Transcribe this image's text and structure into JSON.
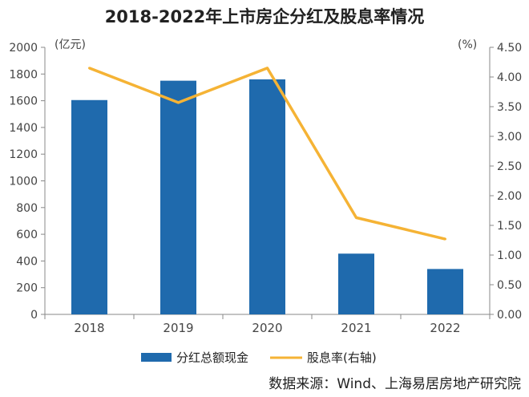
{
  "chart_data": {
    "type": "bar+line",
    "title": "2018-2022年上市房企分红及股息率情况",
    "categories": [
      "2018",
      "2019",
      "2020",
      "2021",
      "2022"
    ],
    "series": [
      {
        "name": "分红总额现金",
        "type": "bar",
        "axis": "left",
        "color": "#1f6aad",
        "values": [
          1605,
          1750,
          1760,
          455,
          340
        ]
      },
      {
        "name": "股息率(右轴)",
        "type": "line",
        "axis": "right",
        "color": "#f5b335",
        "values": [
          4.15,
          3.57,
          4.15,
          1.63,
          1.27
        ]
      }
    ],
    "left_axis": {
      "unit": "(亿元)",
      "min": 0,
      "max": 2000,
      "step": 200,
      "ticks": [
        "0",
        "200",
        "400",
        "600",
        "800",
        "1000",
        "1200",
        "1400",
        "1600",
        "1800",
        "2000"
      ]
    },
    "right_axis": {
      "unit": "(%)",
      "min": 0,
      "max": 4.5,
      "step": 0.5,
      "ticks": [
        "0.00",
        "0.50",
        "1.00",
        "1.50",
        "2.00",
        "2.50",
        "3.00",
        "3.50",
        "4.00",
        "4.50"
      ]
    },
    "legend_position": "bottom",
    "grid": false,
    "source": "数据来源：Wind、上海易居房地产研究院"
  }
}
